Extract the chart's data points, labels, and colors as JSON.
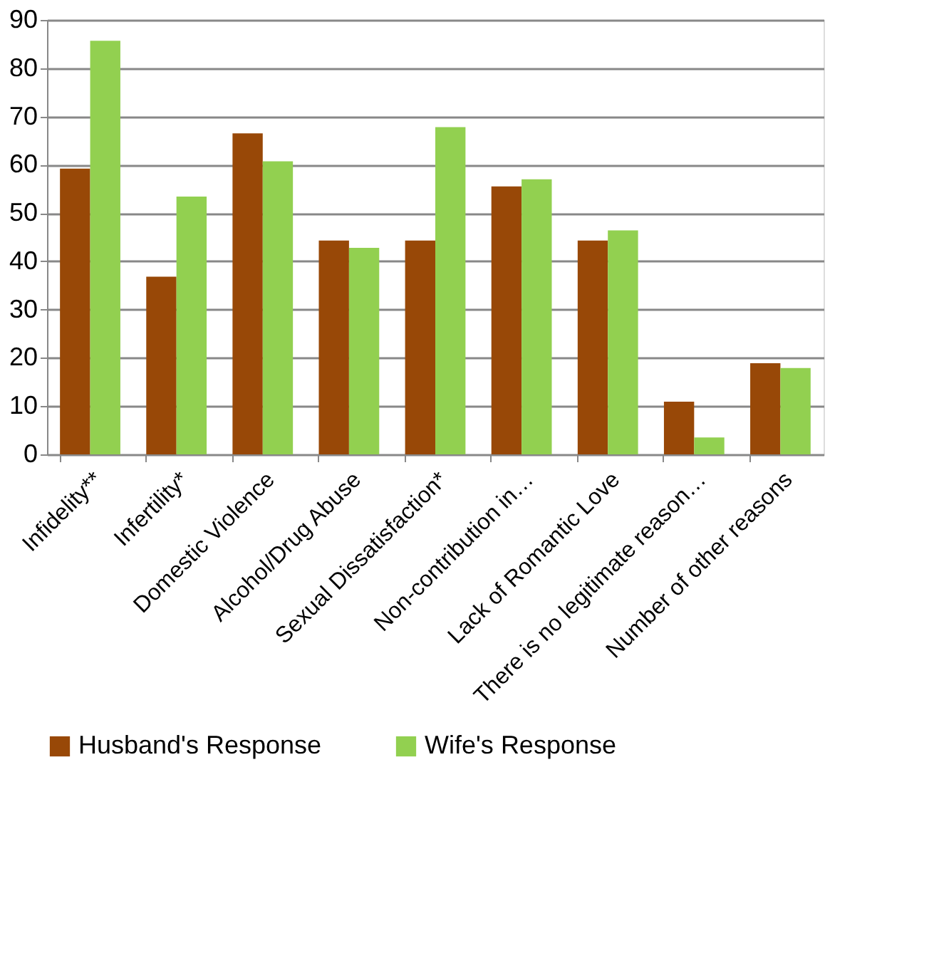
{
  "chart_data": {
    "type": "bar",
    "categories": [
      "Infidelity**",
      "Infertility*",
      "Domestic Violence",
      "Alcohol/Drug Abuse",
      "Sexual Dissatisfaction*",
      "Non-contribution in…",
      "Lack of Romantic Love",
      "There is no legitimate reason…",
      "Number of other reasons"
    ],
    "series": [
      {
        "name": "Husband's Response",
        "color": "#984807",
        "values": [
          59.2,
          36.8,
          66.5,
          44.3,
          44.3,
          55.5,
          44.3,
          10.9,
          18.9
        ]
      },
      {
        "name": "Wife's Response",
        "color": "#92d050",
        "values": [
          85.7,
          53.4,
          60.7,
          42.8,
          67.8,
          57.0,
          46.4,
          3.5,
          17.9
        ]
      }
    ],
    "ylim": [
      0,
      90
    ],
    "yticks": [
      0,
      10,
      20,
      30,
      40,
      50,
      60,
      70,
      80,
      90
    ],
    "grid": "y",
    "legend": "bottom"
  }
}
